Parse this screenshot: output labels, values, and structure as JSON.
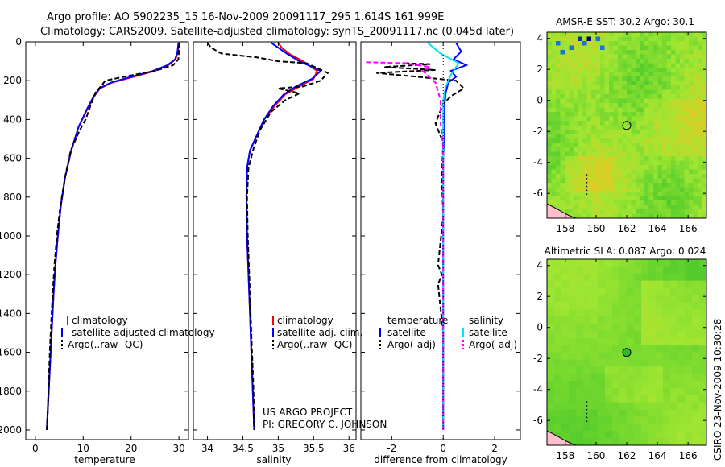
{
  "header": {
    "line1": "Argo profile: AO 5902235_15 16-Nov-2009 20091117_295 1.614S 161.999E",
    "line2": "Climatology: CARS2009. Satellite-adjusted climatology: synTS_20091117.nc (0.045d later)"
  },
  "project": {
    "line1": "US ARGO PROJECT",
    "line2": "PI: GREGORY C. JOHNSON"
  },
  "stamp": "CSIRO 23-Nov-2009 10:30:28",
  "colors": {
    "climatology": "#ff0000",
    "satellite": "#0000ff",
    "argo": "#000000",
    "cyan": "#00e5ee",
    "magenta": "#ff00ff"
  },
  "chart_data": [
    {
      "type": "line",
      "id": "temperature",
      "xlabel": "temperature",
      "ylabel": "",
      "xlim": [
        -2,
        32
      ],
      "ylim": [
        2050,
        0
      ],
      "xticks": [
        0,
        10,
        20,
        30
      ],
      "yticks": [
        0,
        200,
        400,
        600,
        800,
        1000,
        1200,
        1400,
        1600,
        1800,
        2000
      ],
      "legend": [
        "climatology",
        "satellite-adjusted climatology",
        "Argo(..raw -QC)"
      ],
      "series": [
        {
          "name": "climatology",
          "color": "#ff0000",
          "x": [
            30.0,
            29.8,
            29.3,
            27.8,
            25.0,
            20.5,
            16.0,
            13.5,
            12.3,
            10.8,
            9.0,
            7.5,
            6.2,
            5.3,
            4.7,
            4.2,
            3.8,
            3.5,
            3.2,
            2.9,
            2.7,
            2.5,
            2.4
          ],
          "y": [
            5,
            50,
            90,
            120,
            150,
            180,
            210,
            240,
            280,
            350,
            440,
            560,
            700,
            850,
            1000,
            1150,
            1300,
            1450,
            1600,
            1750,
            1850,
            1950,
            2000
          ]
        },
        {
          "name": "satellite-adjusted climatology",
          "color": "#0000ff",
          "x": [
            29.9,
            29.7,
            29.2,
            27.6,
            24.6,
            20.0,
            15.8,
            13.4,
            12.2,
            10.7,
            9.0,
            7.5,
            6.2,
            5.3,
            4.7,
            4.2,
            3.8,
            3.5,
            3.2,
            2.9,
            2.7,
            2.5,
            2.4
          ],
          "y": [
            5,
            50,
            90,
            120,
            150,
            180,
            210,
            240,
            280,
            350,
            440,
            560,
            700,
            850,
            1000,
            1150,
            1300,
            1450,
            1600,
            1750,
            1850,
            1950,
            2000
          ]
        },
        {
          "name": "Argo(..raw -QC)",
          "color": "#000000",
          "dashed": true,
          "x": [
            30.1,
            30.0,
            29.9,
            28.8,
            25.0,
            19.5,
            14.6,
            14.0,
            12.6,
            11.5,
            10.5,
            9.2,
            7.4,
            6.2,
            5.2,
            4.5,
            4.0,
            3.5,
            3.1,
            2.8,
            2.6,
            2.4
          ],
          "y": [
            5,
            40,
            90,
            120,
            150,
            175,
            200,
            220,
            260,
            330,
            400,
            460,
            560,
            700,
            850,
            1000,
            1150,
            1350,
            1550,
            1750,
            1900,
            2000
          ]
        }
      ]
    },
    {
      "type": "line",
      "id": "salinity",
      "xlabel": "salinity",
      "ylabel": "",
      "xlim": [
        33.8,
        36.1
      ],
      "ylim": [
        2050,
        0
      ],
      "xticks": [
        34,
        34.5,
        35,
        35.5,
        36
      ],
      "legend": [
        "climatology",
        "satellite adj. clim.",
        "Argo(..raw -QC)"
      ],
      "series": [
        {
          "name": "climatology",
          "color": "#ff0000",
          "x": [
            35.0,
            35.05,
            35.15,
            35.35,
            35.55,
            35.5,
            35.3,
            35.1,
            34.95,
            34.8,
            34.7,
            34.6,
            34.56,
            34.55,
            34.56,
            34.58,
            34.6,
            34.62,
            34.64,
            34.65,
            34.66
          ],
          "y": [
            5,
            30,
            60,
            100,
            150,
            190,
            230,
            270,
            330,
            400,
            480,
            560,
            650,
            800,
            1000,
            1200,
            1400,
            1600,
            1800,
            1900,
            2000
          ]
        },
        {
          "name": "satellite adj. clim.",
          "color": "#0000ff",
          "x": [
            34.9,
            35.0,
            35.12,
            35.3,
            35.6,
            35.48,
            35.25,
            35.08,
            34.93,
            34.8,
            34.7,
            34.6,
            34.56,
            34.55,
            34.56,
            34.58,
            34.6,
            34.62,
            34.64,
            34.65,
            34.66
          ],
          "y": [
            5,
            30,
            60,
            100,
            150,
            190,
            230,
            270,
            330,
            400,
            480,
            560,
            650,
            800,
            1000,
            1200,
            1400,
            1600,
            1800,
            1900,
            2000
          ]
        },
        {
          "name": "Argo(..raw -QC)",
          "color": "#000000",
          "dashed": true,
          "x": [
            34.0,
            34.05,
            34.2,
            34.7,
            35.0,
            35.4,
            35.7,
            35.6,
            35.35,
            35.0,
            35.3,
            35.1,
            34.9,
            34.75,
            34.65,
            34.58,
            34.56,
            34.57,
            34.59,
            34.61,
            34.63,
            34.65,
            34.66
          ],
          "y": [
            5,
            30,
            60,
            80,
            100,
            110,
            160,
            200,
            230,
            240,
            265,
            300,
            360,
            450,
            550,
            650,
            800,
            1000,
            1200,
            1400,
            1600,
            1800,
            2000
          ]
        }
      ]
    },
    {
      "type": "line",
      "id": "difference",
      "xlabel": "difference from climatology",
      "ylabel": "",
      "xlim": [
        -3.2,
        3.0
      ],
      "ylim": [
        2050,
        0
      ],
      "xticks": [
        -2,
        0,
        2
      ],
      "legend_left": {
        "title": "temperature",
        "items": [
          "satellite",
          "Argo(-adj)"
        ]
      },
      "legend_right": {
        "title": "salinity",
        "items": [
          "satellite",
          "Argo(-adj)"
        ]
      },
      "series": [
        {
          "name": "temperature satellite",
          "color": "#0000ff",
          "x": [
            0.5,
            0.7,
            0.4,
            0.9,
            0.3,
            0.5,
            0.2,
            0.1,
            0.05,
            0.05,
            0.0,
            0.0,
            0.0,
            0.0,
            0.0,
            0.0
          ],
          "y": [
            5,
            50,
            90,
            120,
            150,
            180,
            210,
            260,
            330,
            450,
            600,
            800,
            1000,
            1400,
            1800,
            2000
          ]
        },
        {
          "name": "temperature Argo(-adj)",
          "color": "#000000",
          "dashed": true,
          "x": [
            -1.5,
            -0.5,
            -2.3,
            -0.3,
            -2.6,
            -1.0,
            0.5,
            0.8,
            0.3,
            0.0,
            -0.3,
            0.0,
            -0.05,
            0.0,
            -0.2,
            -0.05,
            -0.2,
            0.0,
            0.0,
            0.0
          ],
          "y": [
            110,
            115,
            130,
            145,
            160,
            180,
            200,
            240,
            280,
            320,
            420,
            520,
            700,
            900,
            1150,
            1200,
            1250,
            1500,
            1800,
            2000
          ]
        },
        {
          "name": "salinity satellite",
          "color": "#00e5ee",
          "x": [
            -0.6,
            -0.1,
            0.6,
            0.3,
            0.1,
            0.0,
            0.0,
            0.0,
            0.0,
            0.0,
            0.0
          ],
          "y": [
            5,
            60,
            110,
            170,
            230,
            300,
            400,
            600,
            1000,
            1600,
            2000
          ]
        },
        {
          "name": "salinity Argo(-adj)",
          "color": "#ff00ff",
          "dashed": true,
          "x": [
            -3.0,
            -1.5,
            -0.5,
            -0.8,
            -0.3,
            -0.1,
            -0.1,
            0.0,
            0.0,
            0.0
          ],
          "y": [
            105,
            110,
            130,
            150,
            210,
            300,
            420,
            550,
            900,
            2000
          ]
        }
      ]
    },
    {
      "type": "heatmap",
      "id": "sst_map",
      "title": "AMSR-E SST: 30.2 Argo: 30.1",
      "xticks": [
        158,
        160,
        162,
        164,
        166
      ],
      "yticks": [
        4,
        2,
        0,
        -2,
        -4,
        -6
      ],
      "xlim": [
        156.8,
        167.2
      ],
      "ylim": [
        -7.6,
        4.4
      ],
      "marker": {
        "lon": 162.0,
        "lat": -1.614
      }
    },
    {
      "type": "heatmap",
      "id": "sla_map",
      "title": "Altimetric SLA: 0.087 Argo: 0.024",
      "xticks": [
        158,
        160,
        162,
        164,
        166
      ],
      "yticks": [
        4,
        2,
        0,
        -2,
        -4,
        -6
      ],
      "xlim": [
        156.8,
        167.2
      ],
      "ylim": [
        -7.6,
        4.4
      ],
      "marker": {
        "lon": 162.0,
        "lat": -1.614
      }
    }
  ]
}
